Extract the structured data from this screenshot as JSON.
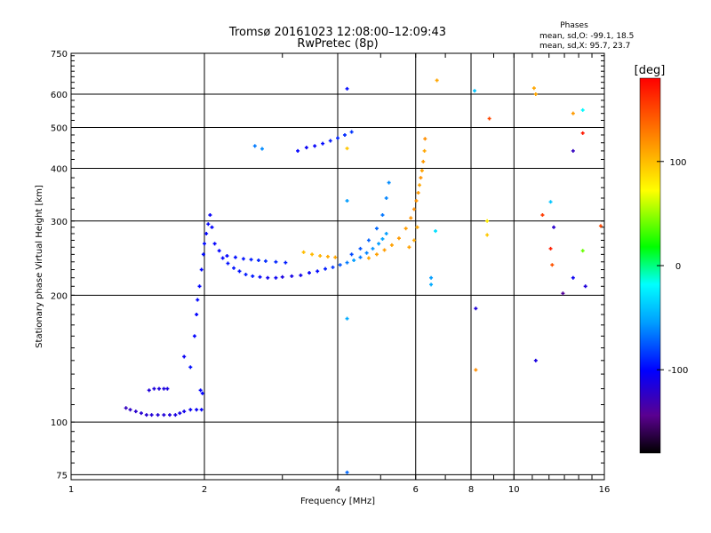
{
  "header": {
    "title": "Tromsø 20161023 12:08:00–12:09:43",
    "subtitle": "RwPretec (8p)"
  },
  "legend": {
    "heading": "Phases",
    "line_o": "mean, sd,O: -99.1, 18.5",
    "line_x": "mean, sd,X:  95.7, 23.7"
  },
  "colorbar": {
    "unit_label": "[deg]",
    "min": -180,
    "max": 180,
    "ticks": [
      {
        "value": 100,
        "label": "100"
      },
      {
        "value": 0,
        "label": "0"
      },
      {
        "value": -100,
        "label": "-100"
      }
    ]
  },
  "chart_data": {
    "type": "scatter",
    "title": "Tromsø 20161023 12:08:00–12:09:43",
    "subtitle": "RwPretec (8p)",
    "xlabel": "Frequency [MHz]",
    "ylabel": "Stationary phase Virtual Height [km]",
    "x_scale": "log",
    "y_scale": "log",
    "xlim": [
      1,
      16
    ],
    "ylim": [
      73,
      750
    ],
    "grid": true,
    "colorbar": "right",
    "x_ticks": [
      {
        "value": 1,
        "label": "1"
      },
      {
        "value": 2,
        "label": "2"
      },
      {
        "value": 4,
        "label": "4"
      },
      {
        "value": 6,
        "label": "6"
      },
      {
        "value": 8,
        "label": "8"
      },
      {
        "value": 10,
        "label": "10"
      },
      {
        "value": 16,
        "label": "16"
      }
    ],
    "y_ticks": [
      {
        "value": 75,
        "label": "75"
      },
      {
        "value": 100,
        "label": "100"
      },
      {
        "value": 200,
        "label": "200"
      },
      {
        "value": 300,
        "label": "300"
      },
      {
        "value": 400,
        "label": "400"
      },
      {
        "value": 500,
        "label": "500"
      },
      {
        "value": 600,
        "label": "600"
      },
      {
        "value": 750,
        "label": "750"
      }
    ],
    "series": [
      {
        "points": [
          [
            1.33,
            108,
            -125
          ],
          [
            1.36,
            107,
            -122
          ],
          [
            1.4,
            106,
            -120
          ],
          [
            1.44,
            105,
            -118
          ],
          [
            1.48,
            104,
            -118
          ],
          [
            1.52,
            104,
            -116
          ],
          [
            1.57,
            104,
            -116
          ],
          [
            1.62,
            104,
            -115
          ],
          [
            1.67,
            104,
            -114
          ],
          [
            1.72,
            104,
            -112
          ],
          [
            1.76,
            105,
            -110
          ],
          [
            1.8,
            106,
            -108
          ],
          [
            1.86,
            107,
            -105
          ],
          [
            1.92,
            107,
            -104
          ],
          [
            1.97,
            107,
            -102
          ],
          [
            1.5,
            119,
            -115
          ],
          [
            1.54,
            120,
            -114
          ],
          [
            1.58,
            120,
            -114
          ],
          [
            1.62,
            120,
            -113
          ],
          [
            1.65,
            120,
            -112
          ],
          [
            1.8,
            143,
            -104
          ],
          [
            1.86,
            135,
            -96
          ],
          [
            1.96,
            119,
            -100
          ],
          [
            1.98,
            117,
            -100
          ],
          [
            1.9,
            160,
            -100
          ],
          [
            1.92,
            180,
            -100
          ],
          [
            1.93,
            195,
            -98
          ],
          [
            1.95,
            210,
            -99
          ],
          [
            1.97,
            230,
            -99
          ],
          [
            1.99,
            250,
            -97
          ],
          [
            2.0,
            265,
            -98
          ],
          [
            2.02,
            280,
            -99
          ],
          [
            2.04,
            295,
            -100
          ],
          [
            2.06,
            310,
            -102
          ],
          [
            2.08,
            290,
            -100
          ],
          [
            2.11,
            265,
            -101
          ],
          [
            2.16,
            255,
            -100
          ],
          [
            2.2,
            245,
            -100
          ],
          [
            2.26,
            238,
            -96
          ],
          [
            2.33,
            232,
            -95
          ],
          [
            2.4,
            228,
            -95
          ],
          [
            2.48,
            224,
            -93
          ],
          [
            2.57,
            222,
            -93
          ],
          [
            2.67,
            221,
            -100
          ],
          [
            2.78,
            220,
            -108
          ],
          [
            2.9,
            220,
            -105
          ],
          [
            3.0,
            221,
            -112
          ],
          [
            3.15,
            222,
            -110
          ],
          [
            3.3,
            223,
            -108
          ],
          [
            3.45,
            226,
            -103
          ],
          [
            3.6,
            228,
            -98
          ],
          [
            3.75,
            231,
            -92
          ],
          [
            3.9,
            233,
            -85
          ],
          [
            4.05,
            236,
            -75
          ],
          [
            4.2,
            239,
            -65
          ],
          [
            4.35,
            242,
            -55
          ],
          [
            4.5,
            246,
            -65
          ],
          [
            4.65,
            252,
            -62
          ],
          [
            4.8,
            258,
            -58
          ],
          [
            4.95,
            265,
            -55
          ],
          [
            5.05,
            272,
            -52
          ],
          [
            5.15,
            280,
            -55
          ],
          [
            2.25,
            248,
            -100
          ],
          [
            2.35,
            246,
            -96
          ],
          [
            2.45,
            244,
            -95
          ],
          [
            2.55,
            243,
            -92
          ],
          [
            2.65,
            242,
            -90
          ],
          [
            2.75,
            241,
            -88
          ],
          [
            2.9,
            240,
            -90
          ],
          [
            3.05,
            239,
            -92
          ],
          [
            4.3,
            250,
            -80
          ],
          [
            4.5,
            258,
            -76
          ],
          [
            4.7,
            270,
            -72
          ],
          [
            4.9,
            288,
            -70
          ],
          [
            5.05,
            310,
            -66
          ],
          [
            5.15,
            340,
            -62
          ],
          [
            5.22,
            370,
            -60
          ],
          [
            3.35,
            253,
            100
          ],
          [
            3.5,
            250,
            102
          ],
          [
            3.65,
            248,
            104
          ],
          [
            3.8,
            247,
            108
          ],
          [
            3.95,
            246,
            110
          ],
          [
            4.7,
            245,
            110
          ],
          [
            4.9,
            250,
            112
          ],
          [
            5.1,
            256,
            114
          ],
          [
            5.3,
            263,
            112
          ],
          [
            5.5,
            273,
            115
          ],
          [
            5.7,
            288,
            114
          ],
          [
            5.85,
            305,
            118
          ],
          [
            5.95,
            320,
            120
          ],
          [
            6.02,
            335,
            118
          ],
          [
            6.08,
            350,
            115
          ],
          [
            6.12,
            365,
            110
          ],
          [
            6.16,
            380,
            118
          ],
          [
            6.2,
            395,
            112
          ],
          [
            6.24,
            415,
            115
          ],
          [
            6.28,
            440,
            110
          ],
          [
            6.3,
            470,
            120
          ],
          [
            5.8,
            260,
            112
          ],
          [
            5.95,
            270,
            108
          ],
          [
            6.05,
            290,
            110
          ],
          [
            3.25,
            440,
            -100
          ],
          [
            3.4,
            448,
            -104
          ],
          [
            3.55,
            452,
            -102
          ],
          [
            3.7,
            458,
            -98
          ],
          [
            3.85,
            465,
            -94
          ],
          [
            4.0,
            472,
            -90
          ],
          [
            4.15,
            480,
            -88
          ],
          [
            4.3,
            488,
            -85
          ],
          [
            2.6,
            452,
            -65
          ],
          [
            2.7,
            445,
            -60
          ],
          [
            4.2,
            618,
            -98
          ],
          [
            4.2,
            446,
            96
          ],
          [
            4.2,
            335,
            -55
          ],
          [
            4.2,
            176,
            -50
          ],
          [
            4.2,
            76,
            -70
          ],
          [
            6.7,
            647,
            110
          ],
          [
            6.65,
            284,
            -30
          ],
          [
            6.5,
            220,
            -55
          ],
          [
            6.5,
            212,
            -50
          ],
          [
            8.15,
            611,
            -40
          ],
          [
            8.2,
            186,
            -115
          ],
          [
            8.2,
            133,
            120
          ],
          [
            8.7,
            300,
            80
          ],
          [
            8.7,
            278,
            95
          ],
          [
            8.8,
            525,
            150
          ],
          [
            11.1,
            620,
            110
          ],
          [
            11.2,
            600,
            110
          ],
          [
            11.2,
            140,
            -112
          ],
          [
            11.6,
            310,
            155
          ],
          [
            12.1,
            333,
            -40
          ],
          [
            12.1,
            258,
            168
          ],
          [
            12.2,
            236,
            145
          ],
          [
            12.3,
            290,
            -120
          ],
          [
            12.9,
            202,
            -140
          ],
          [
            13.6,
            540,
            115
          ],
          [
            13.6,
            440,
            -125
          ],
          [
            13.6,
            220,
            -105
          ],
          [
            14.3,
            485,
            170
          ],
          [
            14.3,
            550,
            -20
          ],
          [
            14.3,
            255,
            40
          ],
          [
            14.5,
            210,
            -115
          ],
          [
            15.7,
            292,
            150
          ]
        ]
      }
    ]
  }
}
